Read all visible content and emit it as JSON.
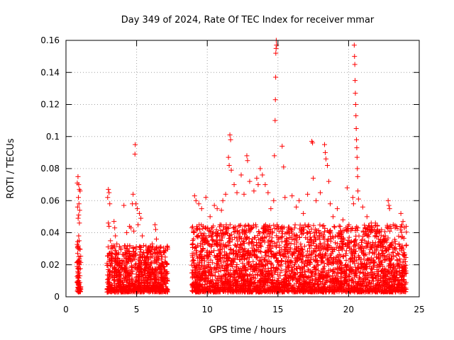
{
  "chart_data": {
    "type": "scatter",
    "title": "Day 349 of 2024, Rate Of TEC Index for receiver mmar",
    "xlabel": "GPS time / hours",
    "ylabel": "ROTI / TECUs",
    "xlim": [
      0,
      25
    ],
    "ylim": [
      0,
      0.16
    ],
    "xticks": [
      0,
      5,
      10,
      15,
      20,
      25
    ],
    "xtick_labels": [
      "0",
      "5",
      "10",
      "15",
      "20",
      "25"
    ],
    "yticks": [
      0,
      0.02,
      0.04,
      0.06,
      0.08,
      0.1,
      0.12,
      0.14,
      0.16
    ],
    "ytick_labels": [
      "0",
      "0.02",
      "0.04",
      "0.06",
      "0.08",
      "0.1",
      "0.12",
      "0.14",
      "0.16"
    ],
    "grid": true,
    "marker": "+",
    "series": [
      {
        "name": "ROTI",
        "color": "#ff0000",
        "points": [
          [
            0.85,
            0.075
          ],
          [
            0.8,
            0.071
          ],
          [
            0.9,
            0.07
          ],
          [
            0.95,
            0.067
          ],
          [
            1.0,
            0.066
          ],
          [
            0.88,
            0.062
          ],
          [
            0.92,
            0.058
          ],
          [
            0.82,
            0.056
          ],
          [
            0.97,
            0.054
          ],
          [
            0.9,
            0.051
          ],
          [
            0.86,
            0.049
          ],
          [
            0.95,
            0.046
          ],
          [
            0.9,
            0.038
          ],
          [
            0.93,
            0.035
          ],
          [
            0.87,
            0.03
          ],
          [
            0.91,
            0.025
          ],
          [
            0.84,
            0.022
          ],
          [
            0.96,
            0.02
          ],
          [
            0.89,
            0.018
          ],
          [
            0.92,
            0.015
          ],
          [
            0.86,
            0.012
          ],
          [
            0.9,
            0.01
          ],
          [
            0.94,
            0.008
          ],
          [
            0.88,
            0.006
          ],
          [
            0.9,
            0.005
          ],
          [
            3.0,
            0.067
          ],
          [
            3.05,
            0.065
          ],
          [
            2.95,
            0.062
          ],
          [
            3.1,
            0.058
          ],
          [
            3.0,
            0.046
          ],
          [
            3.05,
            0.044
          ],
          [
            3.15,
            0.035
          ],
          [
            3.2,
            0.03
          ],
          [
            3.1,
            0.027
          ],
          [
            3.25,
            0.024
          ],
          [
            3.4,
            0.047
          ],
          [
            3.45,
            0.043
          ],
          [
            3.5,
            0.038
          ],
          [
            3.6,
            0.033
          ],
          [
            4.1,
            0.057
          ],
          [
            4.3,
            0.04
          ],
          [
            4.5,
            0.044
          ],
          [
            4.6,
            0.043
          ],
          [
            4.7,
            0.058
          ],
          [
            4.75,
            0.064
          ],
          [
            4.8,
            0.041
          ],
          [
            4.9,
            0.095
          ],
          [
            4.88,
            0.089
          ],
          [
            4.95,
            0.058
          ],
          [
            5.05,
            0.055
          ],
          [
            5.2,
            0.052
          ],
          [
            5.3,
            0.049
          ],
          [
            5.1,
            0.045
          ],
          [
            5.4,
            0.038
          ],
          [
            5.5,
            0.032
          ],
          [
            5.8,
            0.03
          ],
          [
            6.1,
            0.033
          ],
          [
            6.3,
            0.045
          ],
          [
            6.35,
            0.042
          ],
          [
            6.4,
            0.036
          ],
          [
            6.6,
            0.028
          ],
          [
            6.8,
            0.025
          ],
          [
            9.1,
            0.063
          ],
          [
            9.2,
            0.06
          ],
          [
            9.4,
            0.058
          ],
          [
            9.6,
            0.055
          ],
          [
            9.9,
            0.062
          ],
          [
            10.2,
            0.05
          ],
          [
            10.5,
            0.057
          ],
          [
            10.7,
            0.055
          ],
          [
            10.9,
            0.045
          ],
          [
            11.0,
            0.054
          ],
          [
            11.1,
            0.06
          ],
          [
            11.3,
            0.064
          ],
          [
            11.5,
            0.087
          ],
          [
            11.55,
            0.082
          ],
          [
            11.6,
            0.101
          ],
          [
            11.65,
            0.098
          ],
          [
            11.7,
            0.079
          ],
          [
            11.9,
            0.07
          ],
          [
            12.1,
            0.065
          ],
          [
            12.4,
            0.076
          ],
          [
            12.6,
            0.064
          ],
          [
            12.8,
            0.088
          ],
          [
            12.85,
            0.085
          ],
          [
            13.0,
            0.072
          ],
          [
            13.3,
            0.066
          ],
          [
            13.5,
            0.074
          ],
          [
            13.6,
            0.07
          ],
          [
            13.75,
            0.08
          ],
          [
            13.9,
            0.076
          ],
          [
            14.1,
            0.07
          ],
          [
            14.3,
            0.065
          ],
          [
            14.5,
            0.055
          ],
          [
            14.7,
            0.06
          ],
          [
            14.8,
            0.11
          ],
          [
            14.82,
            0.123
          ],
          [
            14.84,
            0.137
          ],
          [
            14.85,
            0.152
          ],
          [
            14.87,
            0.155
          ],
          [
            14.88,
            0.16
          ],
          [
            14.9,
            0.157
          ],
          [
            14.75,
            0.088
          ],
          [
            15.3,
            0.094
          ],
          [
            15.4,
            0.081
          ],
          [
            15.5,
            0.062
          ],
          [
            16.0,
            0.063
          ],
          [
            16.3,
            0.056
          ],
          [
            16.5,
            0.06
          ],
          [
            16.8,
            0.052
          ],
          [
            17.1,
            0.064
          ],
          [
            17.4,
            0.097
          ],
          [
            17.45,
            0.096
          ],
          [
            17.5,
            0.074
          ],
          [
            17.7,
            0.06
          ],
          [
            18.0,
            0.065
          ],
          [
            18.3,
            0.095
          ],
          [
            18.35,
            0.09
          ],
          [
            18.4,
            0.086
          ],
          [
            18.5,
            0.082
          ],
          [
            18.6,
            0.072
          ],
          [
            18.7,
            0.058
          ],
          [
            18.9,
            0.05
          ],
          [
            19.2,
            0.055
          ],
          [
            19.6,
            0.048
          ],
          [
            19.9,
            0.068
          ],
          [
            20.3,
            0.062
          ],
          [
            20.35,
            0.058
          ],
          [
            20.4,
            0.157
          ],
          [
            20.42,
            0.15
          ],
          [
            20.44,
            0.145
          ],
          [
            20.46,
            0.135
          ],
          [
            20.48,
            0.127
          ],
          [
            20.5,
            0.12
          ],
          [
            20.52,
            0.113
          ],
          [
            20.54,
            0.105
          ],
          [
            20.56,
            0.098
          ],
          [
            20.58,
            0.093
          ],
          [
            20.6,
            0.087
          ],
          [
            20.62,
            0.08
          ],
          [
            20.64,
            0.075
          ],
          [
            20.66,
            0.066
          ],
          [
            20.7,
            0.061
          ],
          [
            21.0,
            0.056
          ],
          [
            21.3,
            0.05
          ],
          [
            21.6,
            0.046
          ],
          [
            21.9,
            0.046
          ],
          [
            22.2,
            0.041
          ],
          [
            22.6,
            0.038
          ],
          [
            22.8,
            0.06
          ],
          [
            22.85,
            0.057
          ],
          [
            22.9,
            0.055
          ],
          [
            23.3,
            0.043
          ],
          [
            23.7,
            0.052
          ],
          [
            23.85,
            0.047
          ],
          [
            23.95,
            0.043
          ]
        ]
      }
    ],
    "dense_segments": [
      {
        "x_start": 0.78,
        "x_end": 1.05,
        "y_min": 0.003,
        "y_max": 0.035,
        "count": 60
      },
      {
        "x_start": 2.9,
        "x_end": 7.2,
        "y_min": 0.003,
        "y_max": 0.032,
        "count": 900
      },
      {
        "x_start": 8.9,
        "x_end": 24.1,
        "y_min": 0.003,
        "y_max": 0.045,
        "count": 3200
      }
    ]
  }
}
